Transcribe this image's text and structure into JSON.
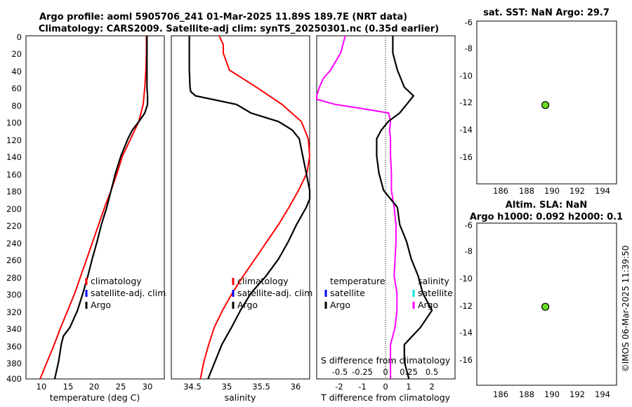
{
  "header": {
    "title_line1": "Argo profile: aoml 5905706_241 01-Mar-2025 11.89S 189.7E (NRT data)",
    "title_line2": "Climatology: CARS2009. Satellite-adj clim: synTS_20250301.nc (0.35d earlier)"
  },
  "colors": {
    "climatology": "#ff0000",
    "satellite_adj": "#0000ff",
    "argo": "#000000",
    "salinity_diff": "#ff00ff",
    "salinity_sat": "#00e5e5",
    "argo_marker": "#66dd22"
  },
  "depth_axis": {
    "ticks": [
      "0",
      "20",
      "40",
      "60",
      "80",
      "100",
      "120",
      "140",
      "160",
      "180",
      "200",
      "220",
      "240",
      "260",
      "280",
      "300",
      "320",
      "340",
      "360",
      "380",
      "400"
    ]
  },
  "panels": {
    "temperature": {
      "xlabel": "temperature (deg C)",
      "ticks": [
        "10",
        "15",
        "20",
        "25",
        "30"
      ],
      "legend": [
        "climatology",
        "satellite-adj. clim",
        "Argo"
      ]
    },
    "salinity": {
      "xlabel": "salinity",
      "ticks": [
        "34.5",
        "35",
        "35.5",
        "36"
      ],
      "legend": [
        "climatology",
        "satellite-adj. clim",
        "Argo"
      ]
    },
    "difference": {
      "xlabel": "T difference from climatology",
      "ticks": [
        "-2",
        "-1",
        "0",
        "1",
        "2"
      ],
      "top_label": "S difference from climatology",
      "top_ticks": [
        "-0.5",
        "-0.25",
        "0",
        "0.25",
        "0.5"
      ],
      "legend_left": [
        "temperature",
        "satellite",
        "Argo"
      ],
      "legend_right": [
        "salinity",
        "satellite",
        "Argo"
      ]
    },
    "sst_map": {
      "title": "sat. SST: NaN Argo: 29.7",
      "yticks": [
        "-6",
        "-8",
        "-10",
        "-12",
        "-14",
        "-16"
      ],
      "xticks": [
        "186",
        "188",
        "190",
        "192",
        "194"
      ]
    },
    "sla_map": {
      "title_line1": "Altim. SLA: NaN",
      "title_line2": "Argo h1000: 0.092 h2000: 0.1",
      "yticks": [
        "-6",
        "-8",
        "-10",
        "-12",
        "-14",
        "-16"
      ],
      "xticks": [
        "186",
        "188",
        "190",
        "192",
        "194"
      ]
    }
  },
  "stamp": "©IMOS 06-Mar-2025 11:39:50",
  "chart_data": [
    {
      "type": "line",
      "name": "temperature-profile",
      "xlabel": "temperature (deg C)",
      "ylabel": "depth",
      "xlim": [
        7.5,
        33
      ],
      "ylim": [
        400,
        0
      ],
      "series": [
        {
          "name": "climatology",
          "depth": [
            0,
            20,
            40,
            60,
            80,
            100,
            120,
            140,
            160,
            180,
            200,
            220,
            240,
            260,
            280,
            300,
            320,
            340,
            360,
            380,
            400
          ],
          "values": [
            29.7,
            29.7,
            29.6,
            29.4,
            29.1,
            28.3,
            26.8,
            25.3,
            24.3,
            23.2,
            22.0,
            20.9,
            19.8,
            18.7,
            17.6,
            16.5,
            15.2,
            13.9,
            12.7,
            11.4,
            10.1
          ]
        },
        {
          "name": "Argo",
          "depth": [
            0,
            20,
            40,
            60,
            70,
            80,
            90,
            100,
            110,
            120,
            140,
            160,
            180,
            200,
            220,
            240,
            260,
            280,
            300,
            320,
            340,
            350,
            360,
            380,
            400
          ],
          "values": [
            29.8,
            29.8,
            29.8,
            29.8,
            29.9,
            29.9,
            29.4,
            28.3,
            27.1,
            26.3,
            25.0,
            24.0,
            23.2,
            22.4,
            21.4,
            20.6,
            19.7,
            18.9,
            18.0,
            17.0,
            15.6,
            14.4,
            14.0,
            13.5,
            12.8
          ]
        }
      ]
    },
    {
      "type": "line",
      "name": "salinity-profile",
      "xlabel": "salinity",
      "ylabel": "depth",
      "xlim": [
        34.25,
        36.25
      ],
      "ylim": [
        400,
        0
      ],
      "series": [
        {
          "name": "climatology",
          "depth": [
            0,
            10,
            20,
            40,
            60,
            80,
            100,
            120,
            140,
            160,
            180,
            200,
            220,
            240,
            260,
            280,
            300,
            320,
            340,
            360,
            380,
            400
          ],
          "values": [
            34.94,
            35.0,
            35.0,
            35.09,
            35.48,
            35.85,
            36.13,
            36.23,
            36.25,
            36.21,
            36.09,
            35.95,
            35.8,
            35.63,
            35.46,
            35.29,
            35.13,
            34.99,
            34.87,
            34.79,
            34.72,
            34.67
          ]
        },
        {
          "name": "Argo",
          "depth": [
            0,
            20,
            40,
            60,
            65,
            70,
            80,
            90,
            100,
            110,
            120,
            140,
            160,
            180,
            190,
            200,
            220,
            240,
            260,
            280,
            300,
            320,
            340,
            360,
            380,
            400
          ],
          "values": [
            34.51,
            34.51,
            34.51,
            34.52,
            34.53,
            34.6,
            35.19,
            35.4,
            35.8,
            36.0,
            36.1,
            36.15,
            36.2,
            36.25,
            36.25,
            36.2,
            36.06,
            35.94,
            35.8,
            35.62,
            35.4,
            35.25,
            35.12,
            34.98,
            34.88,
            34.78
          ]
        }
      ]
    },
    {
      "type": "line",
      "name": "difference-profile",
      "xlabel": "T difference from climatology",
      "top_xlabel": "S difference from climatology",
      "ylabel": "depth",
      "xlim": [
        -3,
        3
      ],
      "ylim": [
        400,
        0
      ],
      "series": [
        {
          "name": "T difference (Argo)",
          "depth": [
            0,
            20,
            40,
            60,
            70,
            80,
            90,
            100,
            110,
            120,
            140,
            160,
            180,
            200,
            220,
            240,
            260,
            280,
            300,
            320,
            340,
            360,
            380,
            400
          ],
          "values": [
            0.3,
            0.3,
            0.5,
            0.8,
            1.2,
            0.9,
            0.6,
            0.1,
            -0.2,
            -0.4,
            -0.4,
            -0.3,
            -0.1,
            0.5,
            0.6,
            0.9,
            1.1,
            1.4,
            1.6,
            2.0,
            1.5,
            0.8,
            0.8,
            1.0
          ]
        },
        {
          "name": "S difference (Argo)",
          "depth": [
            0,
            20,
            40,
            50,
            60,
            70,
            74,
            80,
            85,
            90,
            95,
            100,
            110,
            120,
            140,
            160,
            180,
            200,
            220,
            240,
            260,
            280,
            300,
            320,
            340,
            360,
            380,
            400
          ],
          "values": [
            -0.44,
            -0.49,
            -0.6,
            -0.68,
            -0.72,
            -0.78,
            -0.78,
            -0.55,
            -0.25,
            0.03,
            0.04,
            0.05,
            0.04,
            0.05,
            0.05,
            0.06,
            0.06,
            0.09,
            0.11,
            0.11,
            0.1,
            0.09,
            0.12,
            0.12,
            0.1,
            0.05,
            0.05,
            0.05
          ]
        }
      ]
    },
    {
      "type": "scatter",
      "name": "sst-map",
      "title": "sat. SST: NaN Argo: 29.7",
      "xlim": [
        184.6,
        195.0
      ],
      "ylim": [
        -17.6,
        -5.8
      ],
      "points": [
        {
          "x": 189.7,
          "y": -11.89
        }
      ]
    },
    {
      "type": "scatter",
      "name": "sla-map",
      "title": "Altim. SLA: NaN / Argo h1000: 0.092 h2000: 0.1",
      "xlim": [
        184.6,
        195.0
      ],
      "ylim": [
        -17.6,
        -5.8
      ],
      "points": [
        {
          "x": 189.7,
          "y": -11.89
        }
      ]
    }
  ]
}
